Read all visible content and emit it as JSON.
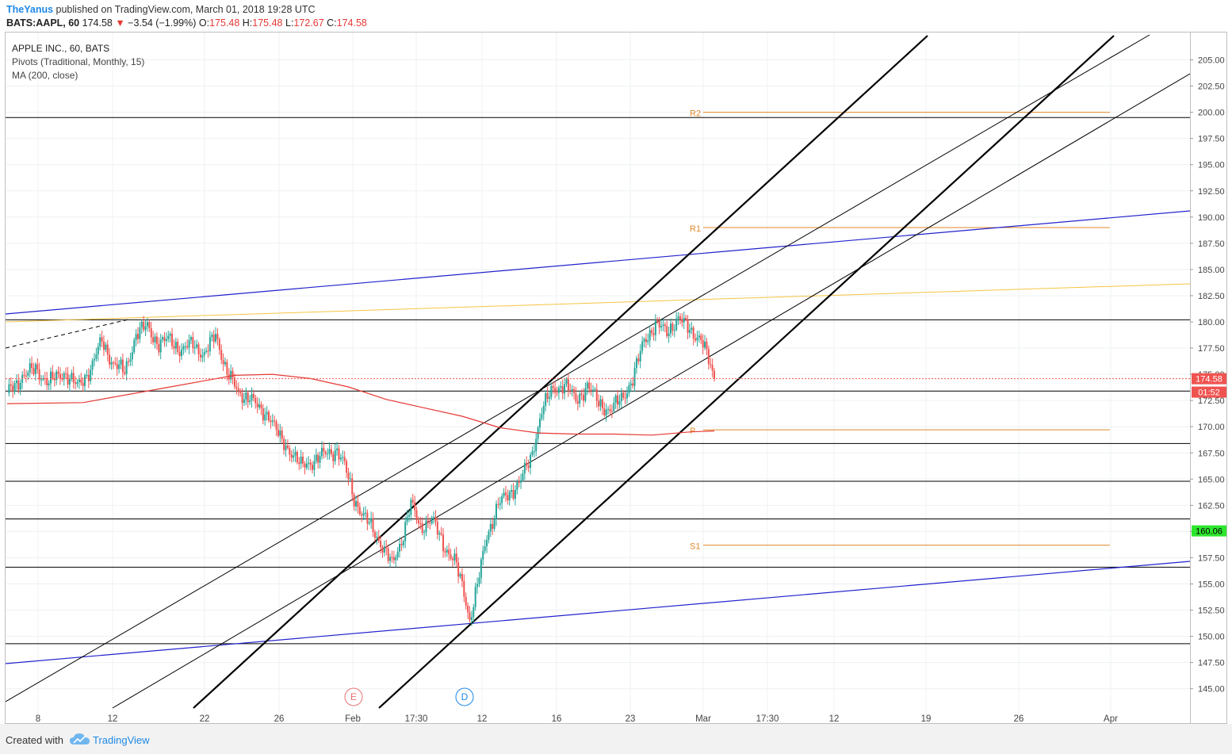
{
  "header": {
    "user": "TheYanus",
    "published": "published on TradingView.com, March 01, 2018 19:28 UTC",
    "symbol": "BATS:AAPL, 60",
    "last": "174.58",
    "change": "−3.54 (−1.99%)",
    "open_label": "O:",
    "open": "175.48",
    "high_label": "H:",
    "high": "175.48",
    "low_label": "L:",
    "low": "172.67",
    "close_label": "C:",
    "close": "174.58"
  },
  "legend": {
    "title": "APPLE INC., 60, BATS",
    "pivots": "Pivots (Traditional, Monthly, 15)",
    "ma": "MA (200, close)"
  },
  "footer": {
    "created_with": "Created with",
    "brand": "TradingView"
  },
  "colors": {
    "up": "#26a69a",
    "down": "#ef5350",
    "ma": "#e53935",
    "pivot": "#e08a2a",
    "trend_blue": "#2222cc",
    "trend_yellow": "#f5c542",
    "level": "#000000",
    "last_price_tag": "#ef5350",
    "green_tag": "#2ee62e"
  },
  "chart_data": {
    "type": "candlestick",
    "title": "APPLE INC., 60, BATS",
    "ylim": [
      143.3,
      207.0
    ],
    "x_ticks": [
      "8",
      "12",
      "22",
      "26",
      "Feb",
      "17:30",
      "12",
      "16",
      "23",
      "Mar",
      "17:30",
      "12",
      "19",
      "26",
      "Apr"
    ],
    "y_ticks": [
      "205.00",
      "202.50",
      "200.00",
      "197.50",
      "195.00",
      "192.50",
      "190.00",
      "187.50",
      "185.00",
      "182.50",
      "180.00",
      "177.50",
      "175.00",
      "172.50",
      "170.00",
      "167.50",
      "165.00",
      "162.50",
      "160.00",
      "157.50",
      "155.00",
      "152.50",
      "150.00",
      "147.50",
      "145.00"
    ],
    "price_tags": [
      {
        "label": "174.58",
        "value": 174.58,
        "kind": "last"
      },
      {
        "label": "01:52",
        "value": 173.3,
        "kind": "countdown"
      },
      {
        "label": "160.06",
        "value": 160.06,
        "kind": "level"
      }
    ],
    "pivots": [
      {
        "name": "R2",
        "value": 200.0
      },
      {
        "name": "R1",
        "value": 189.0
      },
      {
        "name": "P",
        "value": 169.7
      },
      {
        "name": "S1",
        "value": 158.7
      }
    ],
    "horizontal_levels": [
      199.5,
      180.2,
      173.4,
      168.4,
      164.8,
      161.2,
      156.6,
      149.3
    ],
    "events": [
      {
        "label": "E",
        "color": "#e57373"
      },
      {
        "label": "D",
        "color": "#1e88e5"
      }
    ],
    "price_path": [
      [
        0,
        173.2
      ],
      [
        8,
        174.8
      ],
      [
        15,
        175.5
      ],
      [
        22,
        174.2
      ],
      [
        30,
        175.2
      ],
      [
        37,
        173.8
      ],
      [
        44,
        175.5
      ],
      [
        50,
        178.2
      ],
      [
        56,
        176.0
      ],
      [
        62,
        175.2
      ],
      [
        68,
        178.8
      ],
      [
        74,
        179.6
      ],
      [
        80,
        177.8
      ],
      [
        86,
        178.4
      ],
      [
        92,
        177.2
      ],
      [
        98,
        178.0
      ],
      [
        104,
        176.8
      ],
      [
        110,
        178.8
      ],
      [
        116,
        175.2
      ],
      [
        122,
        173.2
      ],
      [
        128,
        172.8
      ],
      [
        133,
        171.6
      ],
      [
        138,
        171.2
      ],
      [
        144,
        168.8
      ],
      [
        150,
        167.6
      ],
      [
        155,
        166.2
      ],
      [
        162,
        166.8
      ],
      [
        168,
        167.4
      ],
      [
        174,
        167.8
      ],
      [
        178,
        166.2
      ],
      [
        183,
        163.2
      ],
      [
        188,
        161.4
      ],
      [
        193,
        160.2
      ],
      [
        198,
        158.6
      ],
      [
        203,
        156.8
      ],
      [
        208,
        159.2
      ],
      [
        213,
        162.6
      ],
      [
        218,
        160.4
      ],
      [
        224,
        161.2
      ],
      [
        230,
        158.8
      ],
      [
        236,
        157.2
      ],
      [
        241,
        154.2
      ],
      [
        244,
        151.6
      ],
      [
        248,
        154.8
      ],
      [
        253,
        159.6
      ],
      [
        259,
        162.6
      ],
      [
        265,
        163.6
      ],
      [
        271,
        165.0
      ],
      [
        276,
        166.8
      ],
      [
        282,
        171.6
      ],
      [
        288,
        173.6
      ],
      [
        294,
        174.0
      ],
      [
        300,
        172.6
      ],
      [
        306,
        173.8
      ],
      [
        312,
        172.4
      ],
      [
        318,
        171.4
      ],
      [
        324,
        172.8
      ],
      [
        330,
        174.4
      ],
      [
        336,
        178.4
      ],
      [
        342,
        179.6
      ],
      [
        348,
        179.2
      ],
      [
        354,
        180.2
      ],
      [
        360,
        179.4
      ],
      [
        366,
        178.2
      ],
      [
        370,
        176.4
      ],
      [
        373,
        174.58
      ]
    ],
    "ma200": [
      [
        0,
        172.2
      ],
      [
        40,
        172.3
      ],
      [
        80,
        173.6
      ],
      [
        120,
        174.9
      ],
      [
        140,
        175.0
      ],
      [
        160,
        174.6
      ],
      [
        180,
        173.8
      ],
      [
        200,
        172.6
      ],
      [
        220,
        171.8
      ],
      [
        240,
        171.0
      ],
      [
        260,
        169.9
      ],
      [
        280,
        169.4
      ],
      [
        300,
        169.3
      ],
      [
        320,
        169.3
      ],
      [
        340,
        169.2
      ],
      [
        360,
        169.5
      ],
      [
        373,
        169.6
      ]
    ]
  }
}
